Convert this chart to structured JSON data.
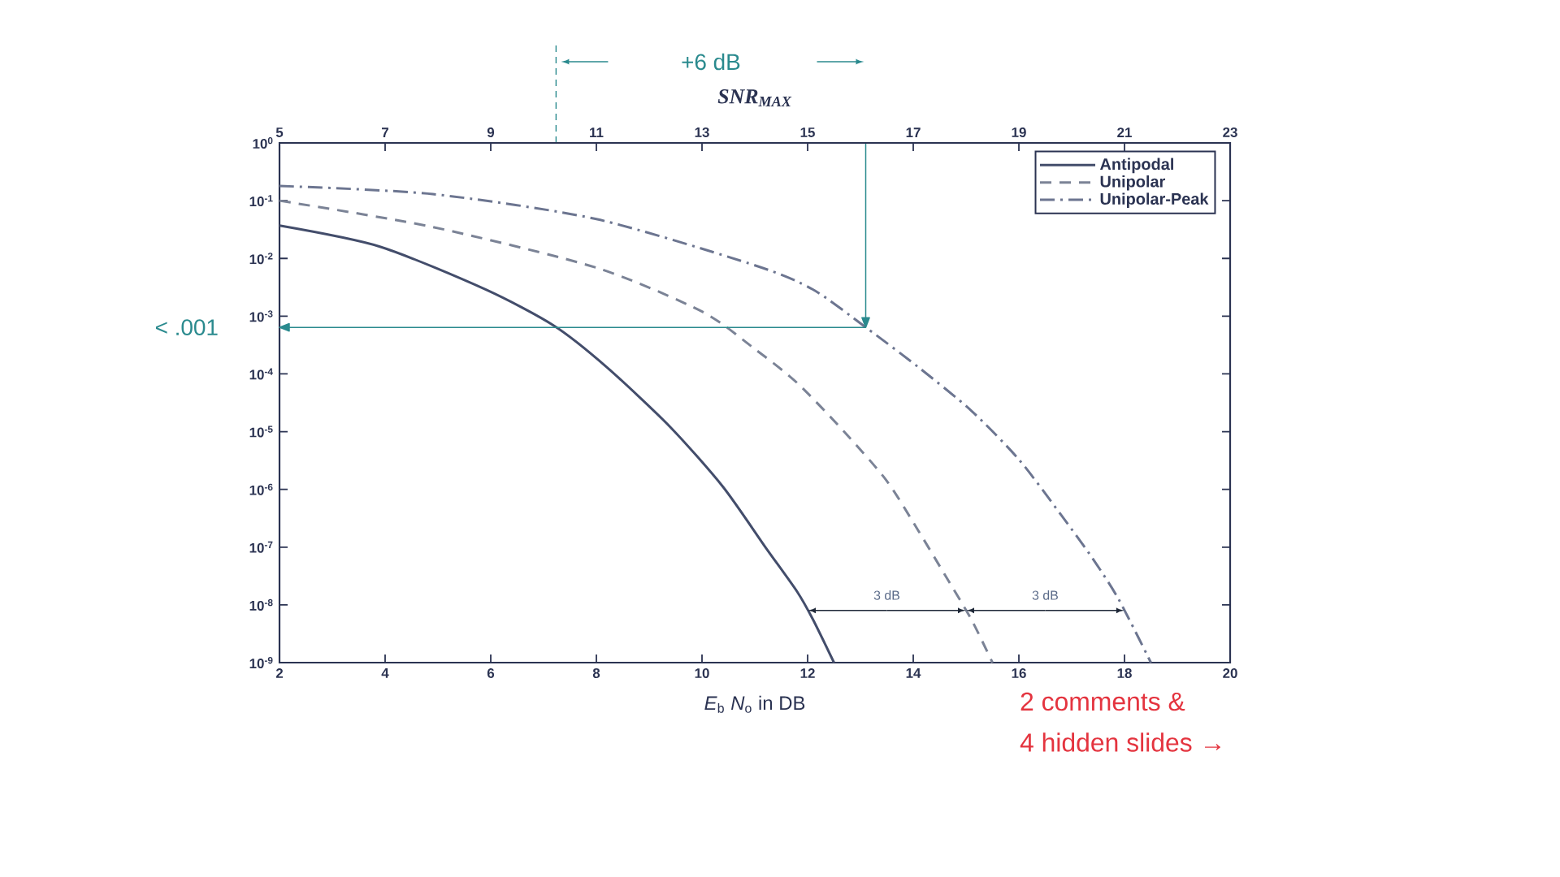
{
  "chart_data": {
    "type": "line",
    "xlabel": "*E*$_{b}$ *N*$_{o}$ in DB",
    "x2label": "*SNR*$_{MAX}$",
    "xlim": [
      2,
      20
    ],
    "xticks": [
      2,
      4,
      6,
      8,
      10,
      12,
      14,
      16,
      18,
      20
    ],
    "x2lim": [
      5,
      23
    ],
    "x2ticks": [
      5,
      7,
      9,
      11,
      13,
      15,
      17,
      19,
      21,
      23
    ],
    "ylim": [
      1e-09,
      1
    ],
    "yticks": [
      {
        "value": 1,
        "label": "10$^{0}$"
      },
      {
        "value": 0.1,
        "label": "10$^{-1}$"
      },
      {
        "value": 0.01,
        "label": "10$^{-2}$"
      },
      {
        "value": 0.001,
        "label": "10$^{-3}$"
      },
      {
        "value": 0.0001,
        "label": "10$^{-4}$"
      },
      {
        "value": 1e-05,
        "label": "10$^{-5}$"
      },
      {
        "value": 1e-06,
        "label": "10$^{-6}$"
      },
      {
        "value": 1e-07,
        "label": "10$^{-7}$"
      },
      {
        "value": 1e-08,
        "label": "10$^{-8}$"
      },
      {
        "value": 1e-09,
        "label": "10$^{-9}$"
      }
    ],
    "log": "y",
    "legend": "top right",
    "series": [
      {
        "name": "Antipodal",
        "color": "#434d6b",
        "line_style": "solid",
        "x": [
          2,
          3.9,
          5.9,
          7.2,
          8.2,
          9.4,
          10.4,
          11.2,
          11.8,
          12.1,
          12.5
        ],
        "values": [
          0.037,
          0.016,
          0.0029,
          0.00068,
          0.00013,
          1.2e-05,
          1.1e-06,
          1e-07,
          1.7e-08,
          5.6e-09,
          1e-09
        ]
      },
      {
        "name": "Unipolar",
        "color": "#7b8396",
        "line_style": "dashed",
        "x": [
          2,
          4.9,
          8,
          10,
          11,
          11.8,
          12.7,
          13.5,
          14.1,
          14.6,
          15.1,
          15.5
        ],
        "values": [
          0.1,
          0.035,
          0.0069,
          0.0012,
          0.00027,
          7e-05,
          9.8e-06,
          1.4e-06,
          1.9e-07,
          3.3e-08,
          5.6e-09,
          1e-09
        ]
      },
      {
        "name": "Unipolar-Peak",
        "color": "#6c7590",
        "line_style": "dashdot",
        "x": [
          2,
          4.9,
          8,
          11,
          12.1,
          13.1,
          14.1,
          15.1,
          16,
          16.8,
          17.4,
          17.9,
          18.5
        ],
        "values": [
          0.18,
          0.13,
          0.048,
          0.0076,
          0.0029,
          0.00064,
          0.00013,
          2.3e-05,
          3.3e-06,
          3.6e-07,
          6.3e-08,
          1.2e-08,
          1e-09
        ]
      }
    ],
    "ref_lines": [
      {
        "axis": "y",
        "value": 0.00064,
        "label": "< .001",
        "color": "#2a8a8e"
      },
      {
        "axis": "x",
        "value": 13.1,
        "color": "#2a8a8e"
      }
    ],
    "annotations": [
      "+6 dB",
      {
        "text": "3 dB",
        "x": 12,
        "y": 8e-09
      },
      {
        "text": "3 dB",
        "x": 15,
        "y": 8e-09
      },
      "2 comments &",
      "4 hidden slides →"
    ]
  }
}
